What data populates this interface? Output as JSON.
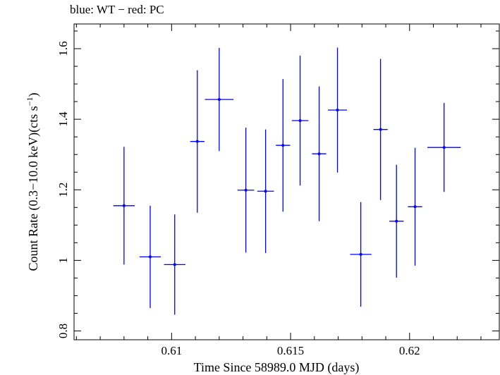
{
  "title": "blue: WT − red: PC",
  "chart_data": {
    "type": "scatter",
    "title": "blue: WT − red: PC",
    "xlabel": "Time Since 58989.0 MJD (days)",
    "ylabel_main": "Count Rate (0.3−10.0 keV)(cts s",
    "ylabel_sup": "−1",
    "ylabel_tail": ")",
    "xlim": [
      0.6059,
      0.6238
    ],
    "ylim": [
      0.775,
      1.67
    ],
    "xticks": [
      0.61,
      0.615,
      0.62
    ],
    "xtick_labels": [
      "0.61",
      "0.615",
      "0.62"
    ],
    "yticks": [
      0.8,
      1.0,
      1.2,
      1.4,
      1.6
    ],
    "ytick_labels": [
      "0.8",
      "1",
      "1.2",
      "1.4",
      "1.6"
    ],
    "grid": false,
    "series": [
      {
        "color": "#0000ff",
        "points": [
          {
            "x": 0.608,
            "xerr": 0.00045,
            "y": 1.155,
            "yerr": 0.167
          },
          {
            "x": 0.6091,
            "xerr": 0.00045,
            "y": 1.01,
            "yerr": 0.145
          },
          {
            "x": 0.61013,
            "xerr": 0.00045,
            "y": 0.988,
            "yerr": 0.142
          },
          {
            "x": 0.61108,
            "xerr": 0.0003,
            "y": 1.337,
            "yerr": 0.202
          },
          {
            "x": 0.612,
            "xerr": 0.0006,
            "y": 1.456,
            "yerr": 0.146
          },
          {
            "x": 0.61312,
            "xerr": 0.00035,
            "y": 1.199,
            "yerr": 0.177
          },
          {
            "x": 0.61395,
            "xerr": 0.00035,
            "y": 1.196,
            "yerr": 0.175
          },
          {
            "x": 0.61468,
            "xerr": 0.0003,
            "y": 1.326,
            "yerr": 0.188
          },
          {
            "x": 0.6154,
            "xerr": 0.00035,
            "y": 1.396,
            "yerr": 0.184
          },
          {
            "x": 0.6162,
            "xerr": 0.0003,
            "y": 1.302,
            "yerr": 0.191
          },
          {
            "x": 0.61697,
            "xerr": 0.0004,
            "y": 1.426,
            "yerr": 0.177
          },
          {
            "x": 0.61795,
            "xerr": 0.00045,
            "y": 1.017,
            "yerr": 0.148
          },
          {
            "x": 0.61878,
            "xerr": 0.0003,
            "y": 1.371,
            "yerr": 0.2
          },
          {
            "x": 0.61945,
            "xerr": 0.0003,
            "y": 1.111,
            "yerr": 0.16
          },
          {
            "x": 0.62023,
            "xerr": 0.0003,
            "y": 1.152,
            "yerr": 0.167
          },
          {
            "x": 0.62145,
            "xerr": 0.0007,
            "y": 1.32,
            "yerr": 0.126
          }
        ]
      }
    ]
  }
}
